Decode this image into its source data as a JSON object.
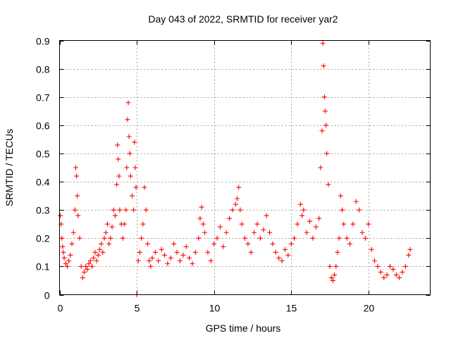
{
  "chart_data": {
    "type": "scatter",
    "title": "Day 043 of 2022, SRMTID for receiver yar2",
    "xlabel": "GPS time / hours",
    "ylabel": "SRMTID / TECUs",
    "xlim": [
      0,
      24
    ],
    "ylim": [
      0,
      0.9
    ],
    "xticks": [
      0,
      5,
      10,
      15,
      20
    ],
    "yticks": [
      0,
      0.1,
      0.2,
      0.3,
      0.4,
      0.5,
      0.6,
      0.7,
      0.8,
      0.9
    ],
    "grid": true,
    "marker": "plus",
    "color": "#ff0000",
    "series": [
      {
        "name": "yar2",
        "x": [
          0.05,
          0.1,
          0.15,
          0.2,
          0.25,
          0.3,
          0.4,
          0.5,
          0.6,
          0.7,
          0.8,
          0.9,
          1.0,
          1.05,
          1.1,
          1.15,
          1.2,
          1.3,
          1.4,
          1.5,
          1.6,
          1.7,
          1.8,
          1.9,
          2.0,
          2.1,
          2.2,
          2.3,
          2.4,
          2.5,
          2.6,
          2.7,
          2.8,
          2.9,
          3.0,
          3.1,
          3.2,
          3.3,
          3.4,
          3.5,
          3.6,
          3.7,
          3.75,
          3.8,
          3.85,
          3.9,
          4.0,
          4.1,
          4.2,
          4.3,
          4.35,
          4.4,
          4.45,
          4.5,
          4.55,
          4.6,
          4.7,
          4.8,
          4.85,
          4.9,
          4.95,
          5.0,
          5.1,
          5.2,
          5.3,
          5.4,
          5.5,
          5.6,
          5.7,
          5.8,
          5.9,
          6.0,
          6.2,
          6.4,
          6.6,
          6.8,
          7.0,
          7.2,
          7.4,
          7.6,
          7.8,
          8.0,
          8.2,
          8.4,
          8.6,
          8.8,
          9.0,
          9.1,
          9.2,
          9.3,
          9.4,
          9.6,
          9.8,
          10.0,
          10.2,
          10.4,
          10.6,
          10.8,
          11.0,
          11.2,
          11.4,
          11.5,
          11.6,
          11.7,
          11.8,
          12.0,
          12.2,
          12.4,
          12.6,
          12.8,
          13.0,
          13.2,
          13.4,
          13.6,
          13.8,
          14.0,
          14.2,
          14.4,
          14.6,
          14.8,
          15.0,
          15.2,
          15.4,
          15.6,
          15.7,
          15.8,
          16.0,
          16.2,
          16.4,
          16.6,
          16.8,
          16.9,
          17.0,
          17.05,
          17.1,
          17.15,
          17.2,
          17.25,
          17.3,
          17.4,
          17.5,
          17.6,
          17.7,
          17.8,
          17.9,
          18.0,
          18.1,
          18.2,
          18.3,
          18.4,
          18.6,
          18.8,
          19.0,
          19.2,
          19.4,
          19.6,
          19.8,
          20.0,
          20.2,
          20.4,
          20.6,
          20.8,
          21.0,
          21.2,
          21.4,
          21.6,
          21.8,
          22.0,
          22.2,
          22.4,
          22.6,
          22.7
        ],
        "y": [
          0.28,
          0.25,
          0.2,
          0.17,
          0.15,
          0.13,
          0.11,
          0.1,
          0.12,
          0.14,
          0.18,
          0.22,
          0.3,
          0.45,
          0.42,
          0.35,
          0.28,
          0.2,
          0.1,
          0.06,
          0.08,
          0.1,
          0.09,
          0.11,
          0.12,
          0.1,
          0.13,
          0.15,
          0.12,
          0.14,
          0.16,
          0.18,
          0.15,
          0.2,
          0.22,
          0.25,
          0.18,
          0.2,
          0.24,
          0.3,
          0.28,
          0.39,
          0.53,
          0.48,
          0.42,
          0.3,
          0.25,
          0.2,
          0.25,
          0.3,
          0.45,
          0.62,
          0.68,
          0.56,
          0.5,
          0.42,
          0.35,
          0.3,
          0.54,
          0.45,
          0.38,
          0.0,
          0.12,
          0.15,
          0.2,
          0.25,
          0.38,
          0.3,
          0.18,
          0.12,
          0.1,
          0.13,
          0.15,
          0.12,
          0.16,
          0.14,
          0.11,
          0.13,
          0.18,
          0.15,
          0.12,
          0.14,
          0.17,
          0.13,
          0.11,
          0.15,
          0.2,
          0.27,
          0.31,
          0.25,
          0.22,
          0.15,
          0.12,
          0.18,
          0.2,
          0.24,
          0.17,
          0.22,
          0.27,
          0.3,
          0.32,
          0.34,
          0.38,
          0.3,
          0.25,
          0.2,
          0.18,
          0.15,
          0.22,
          0.25,
          0.2,
          0.23,
          0.28,
          0.22,
          0.18,
          0.15,
          0.13,
          0.12,
          0.16,
          0.14,
          0.18,
          0.2,
          0.25,
          0.32,
          0.28,
          0.3,
          0.22,
          0.26,
          0.2,
          0.24,
          0.27,
          0.45,
          0.58,
          0.89,
          0.81,
          0.7,
          0.65,
          0.6,
          0.5,
          0.39,
          0.1,
          0.06,
          0.05,
          0.07,
          0.1,
          0.15,
          0.2,
          0.35,
          0.3,
          0.25,
          0.2,
          0.18,
          0.25,
          0.33,
          0.3,
          0.22,
          0.2,
          0.25,
          0.16,
          0.12,
          0.1,
          0.08,
          0.06,
          0.07,
          0.1,
          0.09,
          0.07,
          0.06,
          0.08,
          0.1,
          0.14,
          0.16
        ]
      }
    ]
  }
}
